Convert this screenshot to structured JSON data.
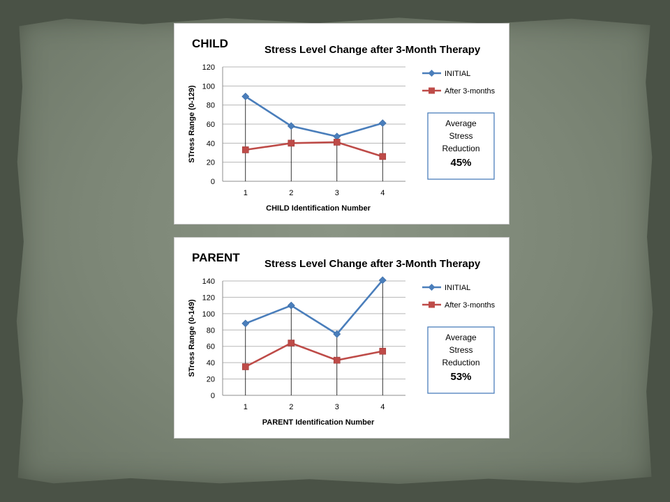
{
  "chart_data": [
    {
      "type": "line",
      "panel_label": "CHILD",
      "title": "Stress Level Change after 3-Month Therapy",
      "xlabel": "CHILD Identification Number",
      "ylabel": "STress Range (0-129)",
      "categories": [
        "1",
        "2",
        "3",
        "4"
      ],
      "ylim": [
        0,
        120
      ],
      "yticks": [
        0,
        20,
        40,
        60,
        80,
        100,
        120
      ],
      "grid": true,
      "legend_position": "right",
      "series": [
        {
          "name": "INITIAL",
          "values": [
            89,
            58,
            47,
            61
          ],
          "color": "#4a7ebb",
          "marker": "diamond"
        },
        {
          "name": "After 3-months",
          "values": [
            33,
            40,
            41,
            26
          ],
          "color": "#be4b48",
          "marker": "square"
        }
      ],
      "annotation": {
        "lines": [
          "Average",
          "Stress",
          "Reduction"
        ],
        "value": "45%"
      }
    },
    {
      "type": "line",
      "panel_label": "PARENT",
      "title": "Stress Level Change after 3-Month Therapy",
      "xlabel": "PARENT Identification Number",
      "ylabel": "STress Range (0-149)",
      "categories": [
        "1",
        "2",
        "3",
        "4"
      ],
      "ylim": [
        0,
        140
      ],
      "yticks": [
        0,
        20,
        40,
        60,
        80,
        100,
        120,
        140
      ],
      "grid": true,
      "legend_position": "right",
      "series": [
        {
          "name": "INITIAL",
          "values": [
            88,
            110,
            75,
            141
          ],
          "color": "#4a7ebb",
          "marker": "diamond"
        },
        {
          "name": "After 3-months",
          "values": [
            35,
            64,
            43,
            54
          ],
          "color": "#be4b48",
          "marker": "square"
        }
      ],
      "annotation": {
        "lines": [
          "Average",
          "Stress",
          "Reduction"
        ],
        "value": "53%"
      }
    }
  ]
}
